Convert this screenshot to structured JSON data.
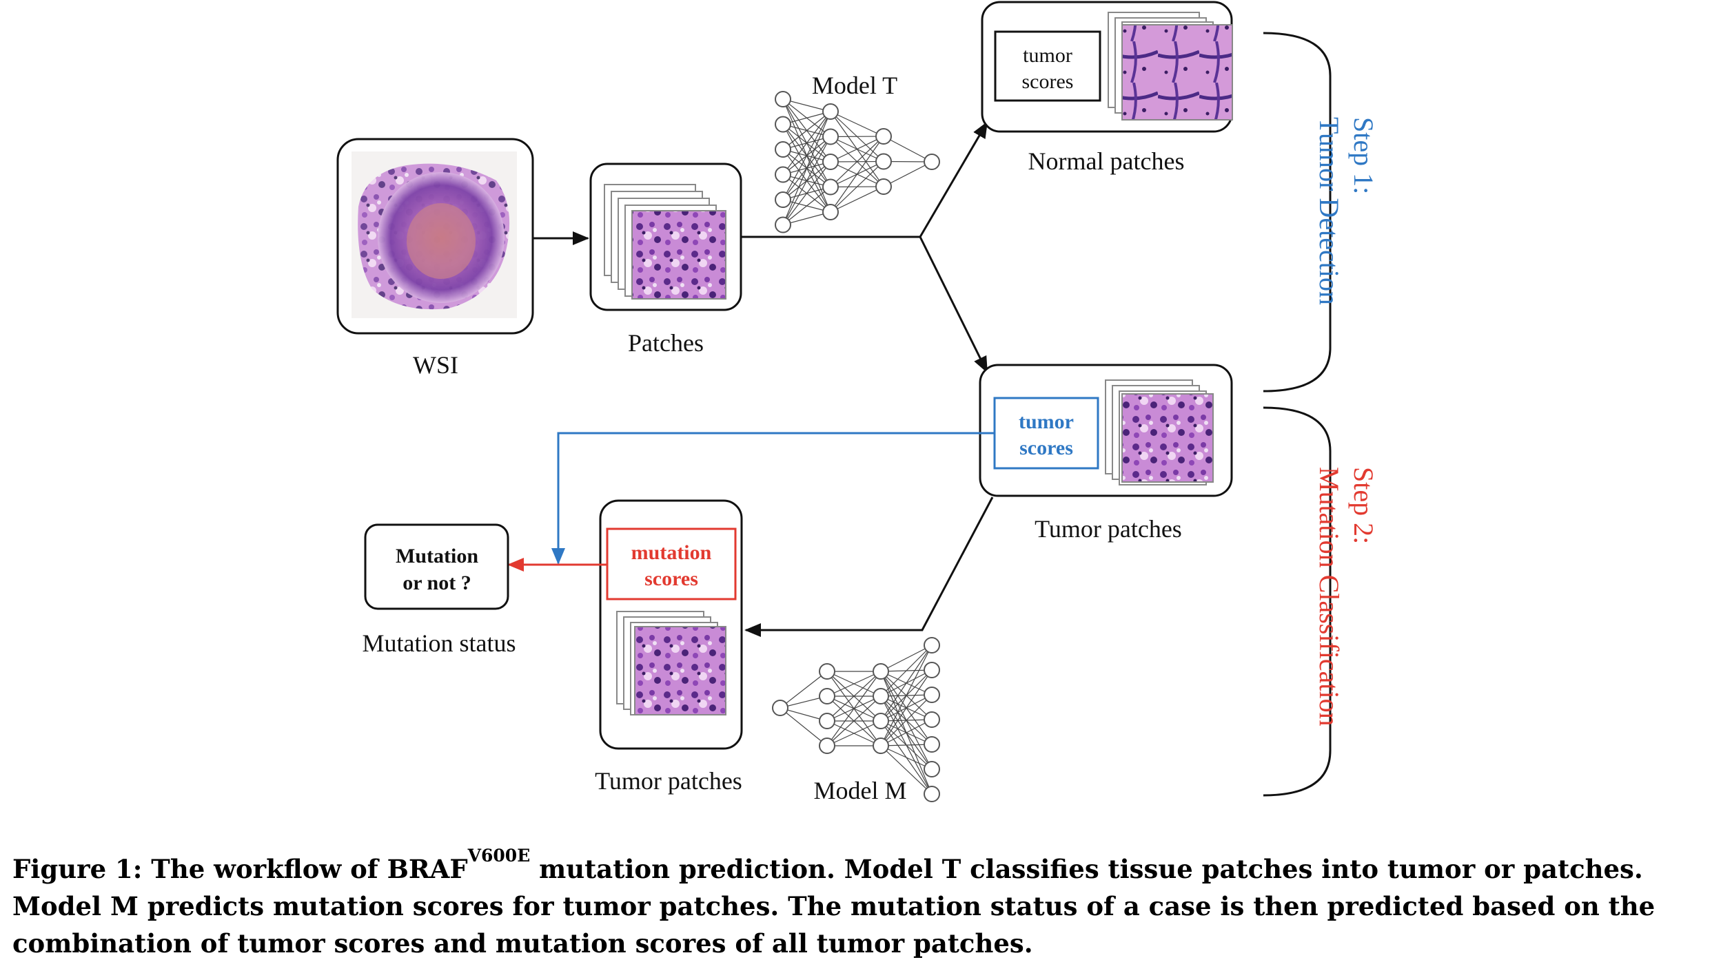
{
  "labels": {
    "wsi": "WSI",
    "patches": "Patches",
    "model_t": "Model T",
    "normal_patches": "Normal patches",
    "tumor_patches_top": "Tumor patches",
    "tumor_patches_bottom": "Tumor patches",
    "model_m": "Model M",
    "mutation_status": "Mutation status"
  },
  "boxes": {
    "normal_scores_line1": "tumor",
    "normal_scores_line2": "scores",
    "tumor_scores_line1": "tumor",
    "tumor_scores_line2": "scores",
    "mutation_scores_line1": "mutation",
    "mutation_scores_line2": "scores",
    "mutation_question_line1": "Mutation",
    "mutation_question_line2": "or not ?"
  },
  "steps": {
    "step1_line1": "Step 1:",
    "step1_line2": "Tumor Detection",
    "step2_line1": "Step 2:",
    "step2_line2": "Mutation Classification"
  },
  "caption": {
    "prefix": "Figure 1: The workflow of BRAF",
    "superscript": "V600E",
    "rest": " mutation prediction. Model T classifies tissue patches into tumor or patches. Model M predicts mutation scores for tumor patches. The mutation status of a case is then predicted based on the combination of tumor scores and mutation scores of all tumor patches."
  },
  "colors": {
    "blue": "#2f78c4",
    "red": "#e23a30",
    "black": "#111111",
    "tissue": "#9a4fb5",
    "tissue_light": "#d9a2df"
  }
}
